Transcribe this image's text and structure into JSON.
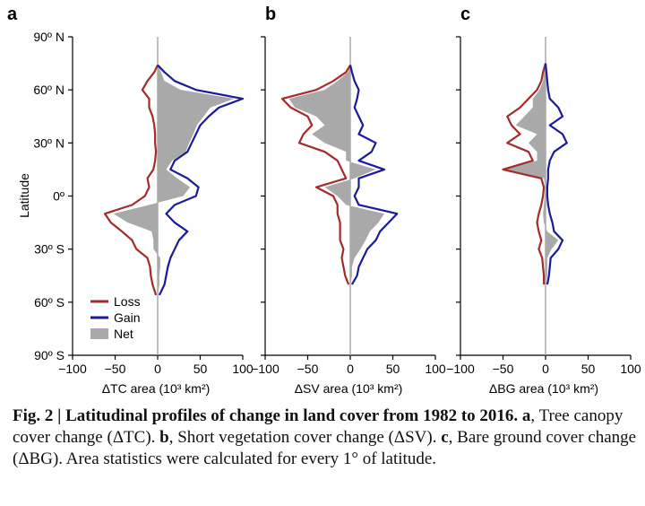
{
  "figure": {
    "ylabel": "Latitude",
    "legend": {
      "loss": "Loss",
      "gain": "Gain",
      "net": "Net"
    },
    "colors": {
      "loss": "#a52a2a",
      "gain": "#1a1a9c",
      "net": "#a9a9a9",
      "zero": "#aaaaaa"
    }
  },
  "chart_data": [
    {
      "type": "area",
      "panel": "a",
      "xlabel": "ΔTC area (10³ km²)",
      "ylabel": "Latitude",
      "xlim": [
        -100,
        100
      ],
      "ylim": [
        -90,
        90
      ],
      "x_ticks": [
        "−100",
        "−50",
        "0",
        "50",
        "100"
      ],
      "y_ticks": [
        "90º N",
        "60º N",
        "30º N",
        "0º",
        "30º S",
        "60º S",
        "90º S"
      ],
      "latitude": [
        -56,
        -50,
        -45,
        -40,
        -35,
        -30,
        -25,
        -20,
        -15,
        -10,
        -5,
        0,
        5,
        10,
        15,
        20,
        25,
        30,
        35,
        40,
        45,
        50,
        55,
        60,
        65,
        70,
        74
      ],
      "series": [
        {
          "name": "Loss",
          "values": [
            -2,
            -6,
            -8,
            -9,
            -12,
            -25,
            -30,
            -42,
            -55,
            -62,
            -30,
            -15,
            -10,
            -12,
            -5,
            -3,
            -2,
            -3,
            -3,
            -4,
            -6,
            -10,
            -10,
            -18,
            -12,
            -4,
            0
          ]
        },
        {
          "name": "Gain",
          "values": [
            2,
            8,
            10,
            12,
            15,
            20,
            25,
            35,
            20,
            10,
            20,
            45,
            48,
            35,
            15,
            20,
            35,
            40,
            45,
            50,
            60,
            72,
            100,
            45,
            20,
            8,
            0
          ]
        },
        {
          "name": "Net",
          "values": [
            0,
            2,
            2,
            3,
            3,
            -5,
            -5,
            -7,
            -35,
            -52,
            -10,
            30,
            38,
            23,
            10,
            17,
            33,
            37,
            42,
            46,
            54,
            62,
            90,
            27,
            8,
            4,
            0
          ]
        }
      ]
    },
    {
      "type": "area",
      "panel": "b",
      "xlabel": "ΔSV area (10³ km²)",
      "xlim": [
        -100,
        100
      ],
      "ylim": [
        -90,
        90
      ],
      "x_ticks": [
        "−100",
        "−50",
        "0",
        "50",
        "100"
      ],
      "latitude": [
        -50,
        -45,
        -40,
        -35,
        -30,
        -25,
        -20,
        -15,
        -10,
        -5,
        0,
        5,
        10,
        15,
        20,
        25,
        30,
        35,
        40,
        45,
        50,
        55,
        60,
        65,
        70,
        74
      ],
      "series": [
        {
          "name": "Loss",
          "values": [
            -2,
            -6,
            -8,
            -10,
            -8,
            -12,
            -12,
            -12,
            -15,
            -15,
            -20,
            -40,
            -5,
            -10,
            -15,
            -30,
            -60,
            -55,
            -45,
            -50,
            -70,
            -80,
            -40,
            -20,
            -5,
            0
          ]
        },
        {
          "name": "Gain",
          "values": [
            2,
            8,
            10,
            15,
            20,
            30,
            35,
            45,
            55,
            10,
            5,
            10,
            10,
            40,
            10,
            25,
            30,
            10,
            15,
            10,
            5,
            8,
            10,
            5,
            2,
            0
          ]
        },
        {
          "name": "Net",
          "values": [
            0,
            2,
            2,
            5,
            12,
            18,
            23,
            33,
            40,
            -5,
            -15,
            -30,
            5,
            30,
            -5,
            -5,
            -30,
            -45,
            -30,
            -40,
            -65,
            -72,
            -30,
            -15,
            -3,
            0
          ]
        }
      ]
    },
    {
      "type": "area",
      "panel": "c",
      "xlabel": "ΔBG area (10³ km²)",
      "xlim": [
        -100,
        100
      ],
      "ylim": [
        -90,
        90
      ],
      "x_ticks": [
        "−100",
        "−50",
        "0",
        "50",
        "100"
      ],
      "latitude": [
        -50,
        -45,
        -40,
        -35,
        -30,
        -25,
        -20,
        -15,
        -10,
        -5,
        0,
        5,
        10,
        15,
        20,
        25,
        30,
        35,
        40,
        45,
        50,
        55,
        60,
        65,
        70,
        75
      ],
      "series": [
        {
          "name": "Loss",
          "values": [
            -2,
            -2,
            -3,
            -4,
            -8,
            -5,
            -8,
            -10,
            -8,
            -5,
            -3,
            -2,
            -5,
            -50,
            -15,
            -20,
            -45,
            -30,
            -40,
            -45,
            -30,
            -20,
            -10,
            -5,
            -3,
            0
          ]
        },
        {
          "name": "Gain",
          "values": [
            2,
            4,
            5,
            6,
            15,
            20,
            10,
            8,
            5,
            3,
            2,
            2,
            3,
            3,
            5,
            10,
            25,
            20,
            5,
            20,
            15,
            5,
            3,
            2,
            1,
            0
          ]
        },
        {
          "name": "Net",
          "values": [
            0,
            2,
            2,
            2,
            7,
            15,
            2,
            -2,
            -3,
            -2,
            -1,
            0,
            -2,
            -47,
            -10,
            -10,
            -20,
            -10,
            -35,
            -25,
            -15,
            -15,
            -7,
            -3,
            -2,
            0
          ]
        }
      ]
    }
  ],
  "caption": {
    "title": "Fig. 2 | Latitudinal profiles of change in land cover from 1982 to 2016.",
    "a_letter": "a",
    "a_text": ", Tree canopy cover change (ΔTC). ",
    "b_letter": "b",
    "b_text": ", Short vegetation cover change (ΔSV). ",
    "c_letter": "c",
    "c_text": ", Bare ground cover change (ΔBG). Area statistics were calculated for every 1° of latitude."
  }
}
